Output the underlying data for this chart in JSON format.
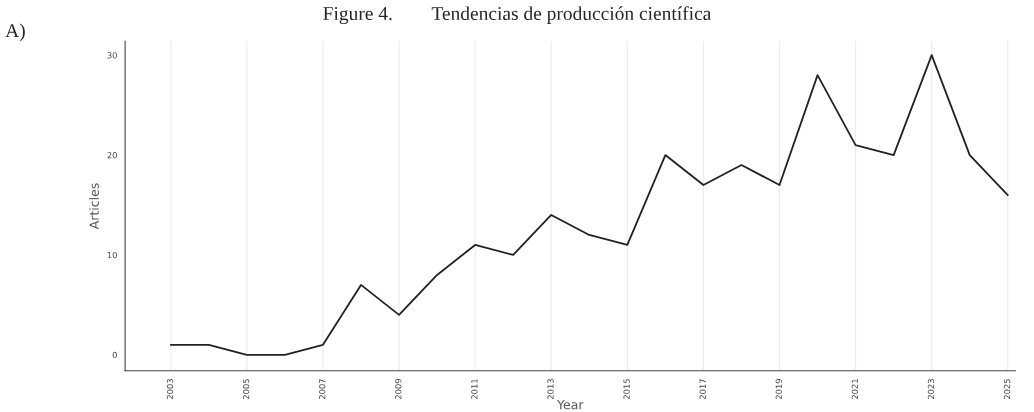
{
  "chart_data": {
    "type": "line",
    "title": "Figure 4.        Tendencias de producción científica",
    "annotations": [
      "A)"
    ],
    "xlabel": "Year",
    "ylabel": "Articles",
    "x": [
      2003,
      2004,
      2005,
      2006,
      2007,
      2008,
      2009,
      2010,
      2011,
      2012,
      2013,
      2014,
      2015,
      2016,
      2017,
      2018,
      2019,
      2020,
      2021,
      2022,
      2023,
      2024,
      2025
    ],
    "series": [
      {
        "color": "#222222",
        "values": [
          1,
          1,
          0,
          0,
          1,
          7,
          4,
          8,
          11,
          10,
          14,
          12,
          11,
          20,
          17,
          19,
          17,
          28,
          21,
          20,
          30,
          20,
          16
        ]
      }
    ],
    "xlim": [
      2001.8,
      2025.2
    ],
    "xticks": [
      2003,
      2005,
      2007,
      2009,
      2011,
      2013,
      2015,
      2017,
      2019,
      2021,
      2023,
      2025
    ],
    "ylim": [
      -1.6,
      31.4
    ],
    "yticks": [
      0,
      10,
      20,
      30
    ],
    "grid": "x",
    "marker": "none",
    "line_style": "solid"
  }
}
